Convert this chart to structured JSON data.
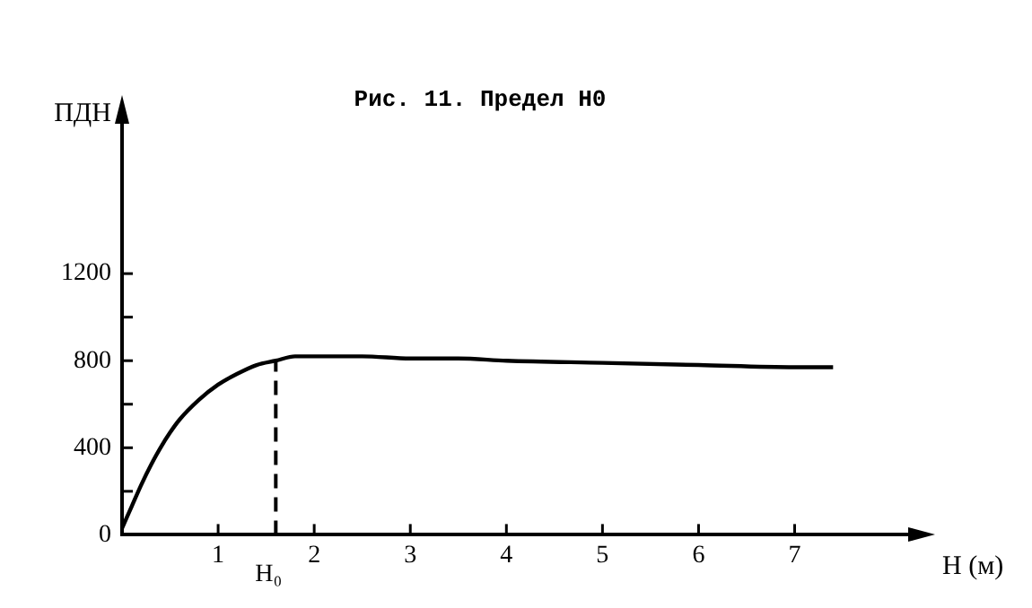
{
  "chart_data": {
    "type": "line",
    "title": "Рис. 11. Предел H0",
    "xlabel": "H (м)",
    "ylabel": "ПДН",
    "x": [
      0,
      0.1,
      0.2,
      0.3,
      0.4,
      0.5,
      0.6,
      0.8,
      1.0,
      1.2,
      1.4,
      1.6,
      1.8,
      2.0,
      2.5,
      3.0,
      3.5,
      4.0,
      5.0,
      6.0,
      7.0,
      7.4
    ],
    "series": [
      {
        "color": "#000000",
        "values": [
          30,
          130,
          230,
          320,
          400,
          470,
          530,
          620,
          690,
          740,
          780,
          800,
          820,
          820,
          820,
          810,
          810,
          800,
          790,
          780,
          770,
          770
        ]
      }
    ],
    "xlim": [
      0,
      8.2
    ],
    "xticks": [
      1,
      2,
      3,
      4,
      5,
      6,
      7
    ],
    "ylim": [
      0,
      1900
    ],
    "yticks": [
      0,
      {
        "value": 200,
        "label": null
      },
      400,
      {
        "value": 600,
        "label": null
      },
      800,
      {
        "value": 1000,
        "label": null
      },
      1200
    ],
    "ref_lines": [
      {
        "axis": "x",
        "value": 1.6,
        "label": "H₀",
        "line_style": "dashed",
        "color": "#000000"
      }
    ],
    "grid": false,
    "legend": false,
    "marker": "none",
    "line_style": "solid"
  }
}
